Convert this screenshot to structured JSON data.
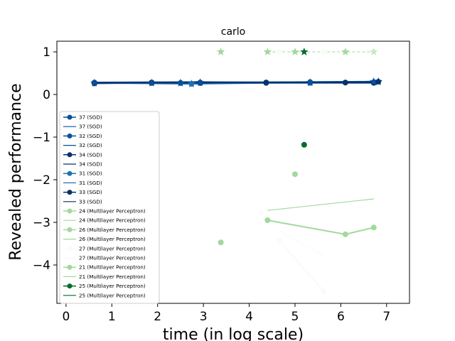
{
  "chart_data": {
    "type": "line",
    "title": "carlo",
    "xlabel": "time (in log scale)",
    "ylabel": "Revealed performance",
    "xlim": [
      -0.2,
      7.5
    ],
    "ylim": [
      -4.9,
      1.25
    ],
    "xticks": [
      0,
      1,
      2,
      3,
      4,
      5,
      6,
      7
    ],
    "yticks": [
      1,
      0,
      -1,
      -2,
      -3,
      -4
    ],
    "grid": false,
    "legend_position": "lower-left",
    "series": [
      {
        "name": "37 (SGD)",
        "color": "#08519c",
        "marker": "circle",
        "x": [
          0.62,
          1.87,
          2.5,
          2.93,
          4.37,
          5.33,
          6.1,
          6.72,
          6.82
        ],
        "y": [
          0.27,
          0.28,
          0.27,
          0.27,
          0.28,
          0.29,
          0.28,
          0.29,
          0.3
        ]
      },
      {
        "name": "37 (SGD)",
        "color": "#08519c",
        "marker": "line",
        "x": [
          0.62,
          2.93,
          4.37,
          6.72
        ],
        "y": [
          0.29,
          0.3,
          0.29,
          0.31
        ]
      },
      {
        "name": "32 (SGD)",
        "color": "#08519c",
        "marker": "circle",
        "x": [
          0.62,
          1.87,
          2.5,
          4.37,
          5.33,
          6.72
        ],
        "y": [
          0.28,
          0.28,
          0.27,
          0.28,
          0.28,
          0.29
        ]
      },
      {
        "name": "32 (SGD)",
        "color": "#08519c",
        "marker": "line",
        "x": [
          0.62,
          2.93,
          5.33,
          6.82
        ],
        "y": [
          0.28,
          0.29,
          0.3,
          0.31
        ]
      },
      {
        "name": "34 (SGD)",
        "color": "#08306b",
        "marker": "circle",
        "x": [
          0.62,
          1.87,
          2.93,
          5.33,
          6.72
        ],
        "y": [
          0.26,
          0.27,
          0.27,
          0.28,
          0.28
        ]
      },
      {
        "name": "34 (SGD)",
        "color": "#08306b",
        "marker": "line",
        "x": [
          0.62,
          2.93,
          5.33,
          6.82
        ],
        "y": [
          0.27,
          0.27,
          0.28,
          0.3
        ]
      },
      {
        "name": "31 (SGD)",
        "color": "#2171b5",
        "marker": "circle",
        "x": [
          0.62,
          2.74,
          4.37,
          5.33,
          6.72
        ],
        "y": [
          0.27,
          0.25,
          0.27,
          0.27,
          0.27
        ]
      },
      {
        "name": "31 (SGD)",
        "color": "#2171b5",
        "marker": "line",
        "x": [
          0.62,
          2.74,
          5.33,
          6.72
        ],
        "y": [
          0.28,
          0.26,
          0.27,
          0.29
        ]
      },
      {
        "name": "33 (SGD)",
        "color": "#08306b",
        "marker": "circle",
        "x": [
          0.62,
          1.87,
          2.93,
          4.37,
          6.1,
          6.72
        ],
        "y": [
          0.27,
          0.28,
          0.28,
          0.28,
          0.28,
          0.28
        ]
      },
      {
        "name": "33 (SGD)",
        "color": "#08306b",
        "marker": "line",
        "x": [
          0.62,
          2.5,
          4.37,
          6.82
        ],
        "y": [
          0.28,
          0.27,
          0.28,
          0.29
        ]
      },
      {
        "name": "24 (Multilayer Perceptron)",
        "color": "#a1d99b",
        "marker": "circle",
        "x": [
          3.38
        ],
        "y": [
          -3.47
        ]
      },
      {
        "name": "24 (Multilayer Perceptron)",
        "color": "#a1d99b",
        "marker": "line",
        "x": [
          4.4,
          6.72
        ],
        "y": [
          -2.72,
          -2.45
        ]
      },
      {
        "name": "26 (Multilayer Perceptron)",
        "color": "#a1d99b",
        "marker": "circle",
        "x": [
          4.4,
          6.1,
          6.72
        ],
        "y": [
          -2.95,
          -3.28,
          -3.12
        ]
      },
      {
        "name": "26 (Multilayer Perceptron)",
        "color": "#a1d99b",
        "marker": "line",
        "x": [
          4.4,
          6.1,
          6.72
        ],
        "y": [
          -2.95,
          -3.28,
          -3.12
        ]
      },
      {
        "name": "27 (Multilayer Perceptron)",
        "color": "#f7fcf5",
        "marker": "circle",
        "x": [
          4.66,
          5.63
        ],
        "y": [
          -3.43,
          -4.62
        ]
      },
      {
        "name": "27 (Multilayer Perceptron)",
        "color": "#f7fcf5",
        "marker": "line",
        "x": [
          4.66,
          5.63
        ],
        "y": [
          -3.2,
          -3.78
        ]
      },
      {
        "name": "21 (Multilayer Perceptron)",
        "color": "#a1d99b",
        "marker": "circle",
        "x": [
          5.0
        ],
        "y": [
          -1.87
        ]
      },
      {
        "name": "21 (Multilayer Perceptron)",
        "color": "#a1d99b",
        "marker": "line",
        "x": [],
        "y": []
      },
      {
        "name": "25 (Multilayer Perceptron)",
        "color": "#006d2c",
        "marker": "circle",
        "x": [
          5.2
        ],
        "y": [
          -1.18
        ]
      },
      {
        "name": "25 (Multilayer Perceptron)",
        "color": "#006d2c",
        "marker": "line",
        "x": [],
        "y": []
      }
    ],
    "stars": [
      {
        "x": 0.62,
        "y": 0.27,
        "color": "#08519c"
      },
      {
        "x": 1.87,
        "y": 0.27,
        "color": "#08519c"
      },
      {
        "x": 2.5,
        "y": 0.27,
        "color": "#08519c"
      },
      {
        "x": 2.74,
        "y": 0.25,
        "color": "#2171b5"
      },
      {
        "x": 2.93,
        "y": 0.28,
        "color": "#08519c"
      },
      {
        "x": 5.33,
        "y": 0.28,
        "color": "#08519c"
      },
      {
        "x": 6.72,
        "y": 0.3,
        "color": "#08519c"
      },
      {
        "x": 6.82,
        "y": 0.3,
        "color": "#08306b"
      },
      {
        "x": 3.38,
        "y": 1.0,
        "color": "#a1d99b"
      },
      {
        "x": 4.4,
        "y": 1.0,
        "color": "#a1d99b"
      },
      {
        "x": 4.66,
        "y": 1.0,
        "color": "#f7fcf5"
      },
      {
        "x": 5.0,
        "y": 1.0,
        "color": "#a1d99b"
      },
      {
        "x": 5.2,
        "y": 1.0,
        "color": "#006d2c"
      },
      {
        "x": 5.63,
        "y": 1.0,
        "color": "#f7fcf5"
      },
      {
        "x": 6.1,
        "y": 1.0,
        "color": "#a1d99b"
      },
      {
        "x": 6.72,
        "y": 1.0,
        "color": "#c7e9c0"
      }
    ],
    "star_line": {
      "x": [
        4.4,
        6.72
      ],
      "y": [
        1.0,
        1.0
      ],
      "color": "#a1d99b"
    }
  }
}
